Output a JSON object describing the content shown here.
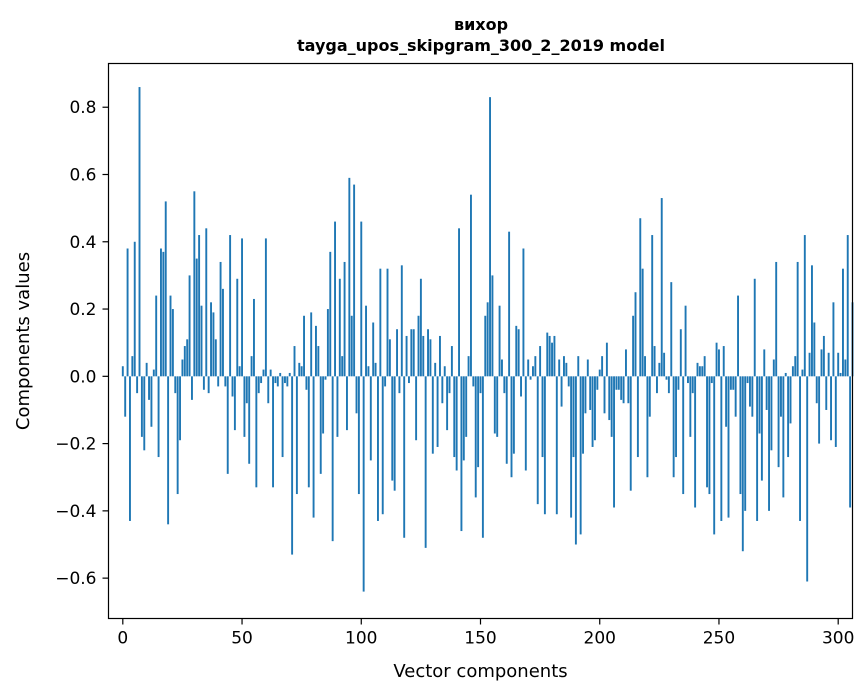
{
  "chart_data": {
    "type": "bar",
    "title_line1": "вихор",
    "title_line2": "tayga_upos_skipgram_300_2_2019 model",
    "xlabel": "Vector components",
    "ylabel": "Components values",
    "xlim": [
      -6,
      306
    ],
    "ylim": [
      -0.72,
      0.93
    ],
    "xticks": [
      0,
      50,
      100,
      150,
      200,
      250,
      300
    ],
    "xtick_labels": [
      "0",
      "50",
      "100",
      "150",
      "200",
      "250",
      "300"
    ],
    "yticks": [
      -0.6,
      -0.4,
      -0.2,
      0.0,
      0.2,
      0.4,
      0.6,
      0.8
    ],
    "ytick_labels": [
      "−0.6",
      "−0.4",
      "−0.2",
      "0.0",
      "0.2",
      "0.4",
      "0.6",
      "0.8"
    ],
    "grid": false,
    "bar_color": "#1f77b4",
    "series": [
      {
        "values": [
          0.03,
          -0.12,
          0.38,
          -0.43,
          0.06,
          0.4,
          -0.05,
          0.86,
          -0.18,
          -0.22,
          0.04,
          -0.07,
          -0.15,
          0.02,
          0.24,
          -0.24,
          0.38,
          0.37,
          0.52,
          -0.44,
          0.24,
          0.2,
          -0.05,
          -0.35,
          -0.19,
          0.05,
          0.09,
          0.11,
          0.3,
          -0.07,
          0.55,
          0.35,
          0.42,
          0.21,
          -0.04,
          0.44,
          -0.05,
          0.22,
          0.19,
          0.11,
          -0.03,
          0.34,
          0.26,
          -0.03,
          -0.29,
          0.42,
          -0.06,
          -0.16,
          0.29,
          0.03,
          0.41,
          -0.18,
          -0.08,
          -0.26,
          0.06,
          0.23,
          -0.33,
          -0.05,
          -0.02,
          0.02,
          0.41,
          -0.08,
          0.02,
          -0.33,
          -0.02,
          -0.03,
          0.01,
          -0.24,
          -0.02,
          -0.03,
          0.01,
          -0.53,
          0.09,
          -0.35,
          0.04,
          0.03,
          0.18,
          -0.04,
          -0.33,
          0.19,
          -0.42,
          0.15,
          0.09,
          -0.29,
          -0.17,
          -0.01,
          0.2,
          0.37,
          -0.49,
          0.46,
          -0.18,
          0.29,
          0.06,
          0.34,
          -0.16,
          0.59,
          0.18,
          0.57,
          -0.11,
          -0.35,
          0.46,
          -0.64,
          0.21,
          0.03,
          -0.25,
          0.16,
          0.04,
          -0.43,
          0.32,
          -0.41,
          -0.03,
          0.32,
          0.11,
          -0.31,
          -0.34,
          0.14,
          -0.05,
          0.33,
          -0.48,
          0.12,
          -0.02,
          0.14,
          0.14,
          -0.19,
          0.18,
          0.29,
          0.12,
          -0.51,
          0.14,
          0.11,
          -0.23,
          0.04,
          -0.21,
          0.12,
          -0.08,
          0.03,
          -0.16,
          -0.05,
          0.09,
          -0.24,
          -0.28,
          0.44,
          -0.46,
          -0.25,
          -0.18,
          0.06,
          0.54,
          -0.03,
          -0.36,
          -0.27,
          -0.05,
          -0.48,
          0.18,
          0.22,
          0.83,
          0.3,
          -0.17,
          -0.18,
          0.21,
          0.05,
          -0.05,
          -0.26,
          0.43,
          -0.3,
          -0.23,
          0.15,
          0.14,
          -0.06,
          0.38,
          -0.28,
          0.05,
          -0.01,
          0.03,
          0.06,
          -0.38,
          0.09,
          -0.24,
          -0.41,
          0.13,
          0.12,
          0.1,
          0.12,
          -0.41,
          0.05,
          -0.09,
          0.06,
          0.04,
          -0.03,
          -0.42,
          -0.24,
          -0.5,
          0.06,
          -0.47,
          -0.23,
          -0.11,
          0.05,
          -0.1,
          -0.21,
          -0.19,
          -0.04,
          0.02,
          0.06,
          -0.11,
          0.1,
          -0.13,
          -0.18,
          -0.39,
          -0.04,
          -0.04,
          -0.07,
          -0.08,
          0.08,
          -0.08,
          -0.34,
          0.18,
          0.25,
          -0.24,
          0.47,
          0.32,
          0.06,
          -0.3,
          -0.12,
          0.42,
          0.09,
          -0.05,
          0.04,
          0.53,
          0.07,
          -0.01,
          -0.05,
          0.28,
          -0.3,
          -0.24,
          -0.04,
          0.14,
          -0.35,
          0.21,
          -0.02,
          -0.18,
          -0.05,
          -0.39,
          0.04,
          0.03,
          0.03,
          0.06,
          -0.33,
          -0.35,
          -0.02,
          -0.47,
          0.1,
          0.08,
          -0.43,
          0.09,
          -0.15,
          -0.42,
          -0.04,
          -0.04,
          -0.12,
          0.24,
          -0.35,
          -0.52,
          -0.4,
          -0.02,
          -0.09,
          -0.12,
          0.29,
          -0.43,
          -0.17,
          -0.31,
          0.08,
          -0.1,
          -0.4,
          -0.22,
          0.05,
          0.34,
          -0.27,
          -0.12,
          -0.36,
          0.01,
          -0.24,
          -0.14,
          0.03,
          0.06,
          0.34,
          -0.43,
          0.02,
          0.42,
          -0.61,
          0.07,
          0.33,
          0.16,
          -0.08,
          -0.2,
          0.08,
          0.12,
          -0.1,
          0.07,
          -0.19,
          0.22,
          -0.21,
          0.07,
          0.01,
          0.32,
          0.05,
          0.42,
          -0.39,
          0.22
        ]
      }
    ]
  }
}
